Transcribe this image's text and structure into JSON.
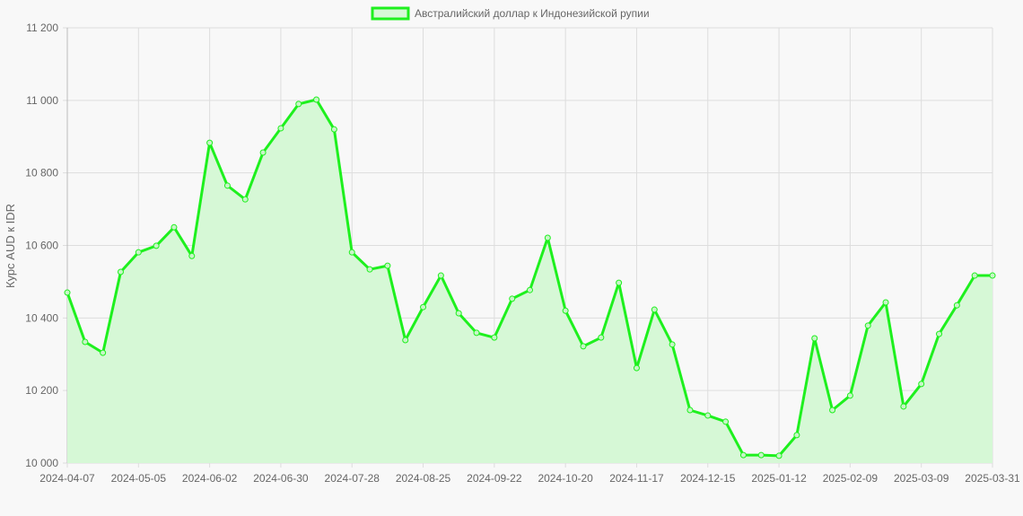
{
  "chart_data": {
    "type": "line",
    "title": "",
    "legend": {
      "label": "Австралийский доллар к Индонезийской рупии",
      "placement": "top"
    },
    "ylabel": "Курс AUD к IDR",
    "xlabel": "",
    "ylim": [
      10000,
      11200
    ],
    "yticks": [
      "10 000",
      "10 200",
      "10 400",
      "10 600",
      "10 800",
      "11 000",
      "11 200"
    ],
    "grid": true,
    "fill": true,
    "colors": {
      "line": "#1ef01e",
      "fill": "#d6f8d6",
      "grid": "#dddddd"
    },
    "x": [
      "2024-04-07",
      "2024-04-14",
      "2024-04-21",
      "2024-04-28",
      "2024-05-05",
      "2024-05-12",
      "2024-05-19",
      "2024-05-26",
      "2024-06-02",
      "2024-06-09",
      "2024-06-16",
      "2024-06-23",
      "2024-06-30",
      "2024-07-07",
      "2024-07-14",
      "2024-07-21",
      "2024-07-28",
      "2024-08-04",
      "2024-08-11",
      "2024-08-18",
      "2024-08-25",
      "2024-09-01",
      "2024-09-08",
      "2024-09-15",
      "2024-09-22",
      "2024-09-29",
      "2024-10-06",
      "2024-10-13",
      "2024-10-20",
      "2024-10-27",
      "2024-11-03",
      "2024-11-10",
      "2024-11-17",
      "2024-11-24",
      "2024-12-01",
      "2024-12-08",
      "2024-12-15",
      "2024-12-22",
      "2024-12-29",
      "2025-01-05",
      "2025-01-12",
      "2025-01-19",
      "2025-01-26",
      "2025-02-02",
      "2025-02-09",
      "2025-02-16",
      "2025-02-23",
      "2025-03-02",
      "2025-03-09",
      "2025-03-16",
      "2025-03-23",
      "2025-03-30",
      "2025-03-31"
    ],
    "xtick_labels": [
      "2024-04-07",
      "2024-05-05",
      "2024-06-02",
      "2024-06-30",
      "2024-07-28",
      "2024-08-25",
      "2024-09-22",
      "2024-10-20",
      "2024-11-17",
      "2024-12-15",
      "2025-01-12",
      "2025-02-09",
      "2025-03-09",
      "2025-03-31"
    ],
    "series": [
      {
        "name": "Австралийский доллар к Индонезийской рупии",
        "values": [
          10470,
          10334,
          10304,
          10527,
          10581,
          10599,
          10650,
          10571,
          10883,
          10765,
          10727,
          10856,
          10923,
          10990,
          11002,
          10920,
          10581,
          10534,
          10544,
          10339,
          10430,
          10517,
          10413,
          10359,
          10346,
          10453,
          10477,
          10621,
          10420,
          10322,
          10346,
          10497,
          10262,
          10423,
          10327,
          10146,
          10131,
          10114,
          10022,
          10022,
          10020,
          10077,
          10344,
          10146,
          10186,
          10379,
          10443,
          10156,
          10218,
          10356,
          10435,
          10517,
          10517
        ]
      }
    ]
  }
}
